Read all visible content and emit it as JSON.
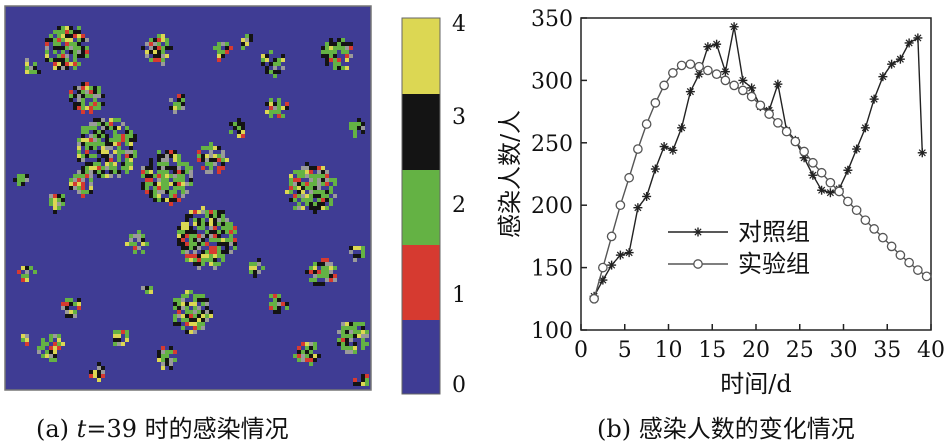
{
  "panel_a": {
    "caption_prefix": "(a) ",
    "caption_var": "t",
    "caption_rest": "=39 时的感染情况",
    "colors": {
      "state_0": "#3f3c94",
      "state_1": "#d63a30",
      "state_2": "#64b244",
      "state_3": "#141414",
      "state_4": "#dcd753"
    },
    "colorbar_ticks": [
      "0",
      "1",
      "2",
      "3",
      "4"
    ]
  },
  "panel_b": {
    "caption": "(b) 感染人数的变化情况"
  },
  "chart_data": {
    "type": "line",
    "title": "",
    "xlabel": "时间/d",
    "ylabel": "感染人数/人",
    "xlim": [
      0,
      40
    ],
    "ylim": [
      100,
      350
    ],
    "xticks": [
      0,
      5,
      10,
      15,
      20,
      25,
      30,
      35,
      40
    ],
    "yticks": [
      100,
      150,
      200,
      250,
      300,
      350
    ],
    "grid": false,
    "legend_position": "center-left",
    "series": [
      {
        "name": "对照组",
        "marker": "star",
        "color": "#222222",
        "x": [
          1.5,
          2.5,
          3.5,
          4.5,
          5.5,
          6.5,
          7.5,
          8.5,
          9.5,
          10.5,
          11.5,
          12.5,
          13.5,
          14.5,
          15.5,
          16.5,
          17.5,
          18.5,
          19.5,
          20.5,
          21.5,
          22.5,
          23.5,
          24.5,
          25.5,
          26.5,
          27.5,
          28.5,
          29.5,
          30.5,
          31.5,
          32.5,
          33.5,
          34.5,
          35.5,
          36.5,
          37.5,
          38.5,
          39.0
        ],
        "y": [
          127,
          140,
          152,
          160,
          162,
          198,
          207,
          229,
          247,
          244,
          262,
          291,
          305,
          327,
          329,
          307,
          343,
          300,
          294,
          279,
          276,
          297,
          260,
          252,
          238,
          224,
          212,
          210,
          213,
          228,
          245,
          262,
          285,
          303,
          313,
          317,
          330,
          334,
          242
        ]
      },
      {
        "name": "实验组",
        "marker": "circle",
        "color": "#555555",
        "x": [
          1.5,
          2.5,
          3.5,
          4.5,
          5.5,
          6.5,
          7.5,
          8.5,
          9.5,
          10.5,
          11.5,
          12.5,
          13.5,
          14.5,
          15.5,
          16.5,
          17.5,
          18.5,
          19.5,
          20.5,
          21.5,
          22.5,
          23.5,
          24.5,
          25.5,
          26.5,
          27.5,
          28.5,
          29.5,
          30.5,
          31.5,
          32.5,
          33.5,
          34.5,
          35.5,
          36.5,
          37.5,
          38.5,
          39.5
        ],
        "y": [
          125,
          150,
          175,
          200,
          222,
          245,
          265,
          282,
          296,
          306,
          312,
          313,
          311,
          308,
          305,
          300,
          296,
          292,
          287,
          280,
          273,
          266,
          259,
          251,
          243,
          234,
          226,
          218,
          211,
          203,
          196,
          188,
          181,
          174,
          167,
          160,
          154,
          148,
          143
        ]
      }
    ]
  }
}
